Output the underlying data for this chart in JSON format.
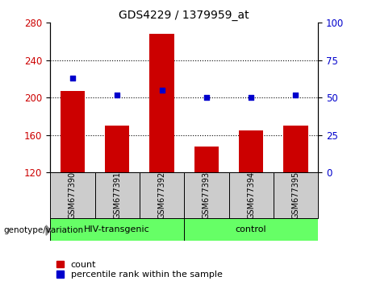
{
  "title": "GDS4229 / 1379959_at",
  "categories": [
    "GSM677390",
    "GSM677391",
    "GSM677392",
    "GSM677393",
    "GSM677394",
    "GSM677395"
  ],
  "counts": [
    207,
    170,
    268,
    148,
    165,
    170
  ],
  "percentiles": [
    63,
    52,
    55,
    50,
    50,
    52
  ],
  "ylim_left": [
    120,
    280
  ],
  "ylim_right": [
    0,
    100
  ],
  "yticks_left": [
    120,
    160,
    200,
    240,
    280
  ],
  "yticks_right": [
    0,
    25,
    50,
    75,
    100
  ],
  "bar_color": "#cc0000",
  "scatter_color": "#0000cc",
  "bar_baseline": 120,
  "group1_label": "HIV-transgenic",
  "group2_label": "control",
  "group1_indices": [
    0,
    1,
    2
  ],
  "group2_indices": [
    3,
    4,
    5
  ],
  "group_color": "#66ff66",
  "tick_label_color_left": "#cc0000",
  "tick_label_color_right": "#0000cc",
  "xlabel_bg_color": "#cccccc",
  "legend_count_label": "count",
  "legend_percentile_label": "percentile rank within the sample",
  "genotype_label": "genotype/variation"
}
